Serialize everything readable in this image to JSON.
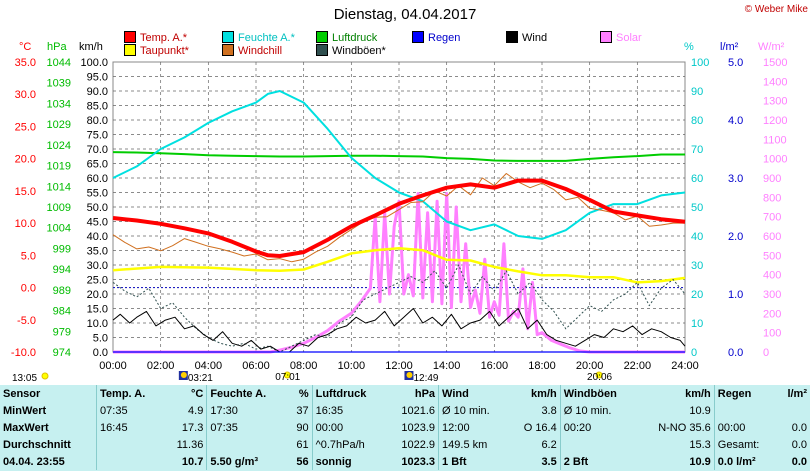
{
  "title": "Dienstag, 04.04.2017",
  "copyright": "© Weber Mike",
  "legend": [
    {
      "label": "Temp. A.*",
      "color": "#ff0000"
    },
    {
      "label": "Taupunkt*",
      "color": "#ffff00"
    },
    {
      "label": "Feuchte A.*",
      "color": "#00e0e0"
    },
    {
      "label": "Windchill",
      "color": "#d07020"
    },
    {
      "label": "Luftdruck",
      "color": "#00cc00"
    },
    {
      "label": "Windböen*",
      "color": "#305050"
    },
    {
      "label": "Regen",
      "color": "#0000ff"
    },
    {
      "label": "Wind",
      "color": "#000000"
    },
    {
      "label": "Solar",
      "color": "#ff80ff"
    }
  ],
  "axis_units": {
    "temp": "°C",
    "pressure": "hPa",
    "wind": "km/h",
    "humidity": "%",
    "rain": "l/m²",
    "solar": "W/m²"
  },
  "chart_data": {
    "type": "line",
    "x_label_times": [
      "00:00",
      "02:00",
      "04:00",
      "06:00",
      "08:00",
      "10:00",
      "12:00",
      "14:00",
      "16:00",
      "18:00",
      "20:00",
      "22:00",
      "24:00"
    ],
    "axes": {
      "temp_c": {
        "range": [
          -10,
          35
        ],
        "ticks": [
          "35.0",
          "30.0",
          "25.0",
          "20.0",
          "15.0",
          "10.0",
          "5.0",
          "0.0",
          "-5.0",
          "-10.0"
        ]
      },
      "pressure_hpa": {
        "range": [
          974,
          1046.4
        ],
        "ticks": [
          "1044",
          "1039",
          "1034",
          "1029",
          "1024",
          "1019",
          "1014",
          "1009",
          "1004",
          "999",
          "994",
          "989",
          "984",
          "979",
          "974"
        ]
      },
      "wind_kmh": {
        "range": [
          0,
          100
        ],
        "ticks": [
          "100.0",
          "95.0",
          "90.0",
          "85.0",
          "80.0",
          "75.0",
          "70.0",
          "65.0",
          "60.0",
          "55.0",
          "50.0",
          "45.0",
          "40.0",
          "35.0",
          "30.0",
          "25.0",
          "20.0",
          "15.0",
          "10.0",
          "5.0",
          "0.0"
        ]
      },
      "humidity_pct": {
        "range": [
          0,
          100
        ],
        "ticks": [
          "100",
          "90",
          "80",
          "70",
          "60",
          "50",
          "40",
          "30",
          "20",
          "10",
          "0"
        ]
      },
      "rain_lm2": {
        "range": [
          0,
          5
        ],
        "ticks": [
          "5.0",
          "4.0",
          "3.0",
          "2.0",
          "1.0",
          "0.0"
        ]
      },
      "solar_wm2": {
        "range": [
          0,
          1500
        ],
        "ticks": [
          "1500",
          "1400",
          "1300",
          "1200",
          "1100",
          "1000",
          "900",
          "800",
          "700",
          "600",
          "500",
          "400",
          "300",
          "200",
          "100",
          "0"
        ]
      }
    },
    "series": [
      {
        "name": "Temp. A.*",
        "axis": "temp_c",
        "color": "#ff0000",
        "x": [
          0,
          1,
          2,
          3,
          4,
          5,
          6,
          6.5,
          7,
          8,
          9,
          10,
          11,
          12,
          13,
          14,
          15,
          16,
          17,
          18,
          19,
          20,
          21,
          22,
          23,
          24
        ],
        "y": [
          10.8,
          10.4,
          9.9,
          9.2,
          8.4,
          7.1,
          5.6,
          5.0,
          4.9,
          5.5,
          7.4,
          9.5,
          11.2,
          13.0,
          14.3,
          15.5,
          16.0,
          15.5,
          16.6,
          16.6,
          15.3,
          13.6,
          11.8,
          11.2,
          10.6,
          10.2
        ]
      },
      {
        "name": "Taupunkt*",
        "axis": "temp_c",
        "color": "#ffff00",
        "x": [
          0,
          2,
          4,
          6,
          7,
          8,
          9,
          10,
          11,
          12,
          13,
          14,
          15,
          16,
          17,
          18,
          19,
          20,
          21,
          22,
          23,
          24
        ],
        "y": [
          2.7,
          3.2,
          3.1,
          2.7,
          2.6,
          2.8,
          4.0,
          5.3,
          5.8,
          6.1,
          5.8,
          4.3,
          4.2,
          3.2,
          2.5,
          1.9,
          1.9,
          1.6,
          1.6,
          0.8,
          1.0,
          1.5
        ]
      },
      {
        "name": "Feuchte A.*",
        "axis": "humidity_pct",
        "color": "#00e0e0",
        "x": [
          0,
          1,
          2,
          3,
          4,
          5,
          6,
          6.5,
          7,
          8,
          9,
          10,
          11,
          12,
          13,
          14,
          15,
          16,
          17,
          18,
          19,
          20,
          21,
          22,
          23,
          24
        ],
        "y": [
          60,
          64,
          70,
          74,
          79,
          83,
          86,
          89,
          90,
          86,
          77,
          67,
          60,
          55,
          52,
          45,
          42,
          44,
          40,
          39,
          42,
          48,
          51,
          51,
          54,
          55
        ]
      },
      {
        "name": "Windchill",
        "axis": "temp_c",
        "color": "#d07020",
        "x": [
          0,
          0.5,
          1,
          1.5,
          2,
          2.5,
          3,
          3.5,
          4,
          4.5,
          5,
          5.5,
          6,
          6.5,
          7,
          7.5,
          8,
          8.5,
          9,
          9.5,
          10,
          10.5,
          11,
          11.5,
          12,
          12.5,
          13,
          13.5,
          14,
          14.5,
          15,
          15.5,
          16,
          16.5,
          17,
          17.5,
          18,
          18.5,
          19,
          19.5,
          20,
          20.5,
          21,
          21.5,
          22,
          22.5,
          23,
          23.5,
          24
        ],
        "y": [
          8.2,
          7.0,
          6.0,
          6.3,
          5.7,
          6.5,
          7.6,
          7.0,
          6.4,
          6.0,
          5.5,
          4.9,
          5.2,
          4.3,
          4.5,
          4.0,
          4.4,
          5.5,
          6.4,
          7.8,
          9.0,
          10.2,
          10.9,
          11.0,
          12.1,
          13.2,
          13.3,
          15.0,
          14.2,
          15.8,
          14.4,
          17.0,
          15.8,
          17.7,
          16.4,
          15.5,
          16.2,
          15.2,
          13.6,
          14.0,
          12.3,
          12.0,
          11.6,
          10.5,
          11.1,
          9.5,
          9.7,
          10.0,
          10.0
        ]
      },
      {
        "name": "Luftdruck",
        "axis": "pressure_hpa",
        "color": "#00cc00",
        "x": [
          0,
          1,
          2,
          3,
          4,
          5,
          6,
          7,
          8,
          9,
          10,
          11,
          12,
          13,
          14,
          15,
          16,
          17,
          18,
          19,
          20,
          21,
          22,
          23,
          24
        ],
        "y": [
          1023.9,
          1023.8,
          1023.6,
          1023.4,
          1023.1,
          1023.0,
          1022.9,
          1022.8,
          1022.8,
          1022.9,
          1023.0,
          1023.0,
          1022.9,
          1022.8,
          1022.4,
          1022.2,
          1021.8,
          1021.7,
          1021.7,
          1021.7,
          1022.2,
          1022.6,
          1022.9,
          1023.3,
          1023.3
        ]
      },
      {
        "name": "Windböen*",
        "axis": "wind_kmh",
        "color": "#305050",
        "x": [
          0,
          0.5,
          1,
          1.5,
          2,
          2.5,
          3,
          3.5,
          4,
          4.5,
          5,
          5.5,
          6,
          6.5,
          7,
          7.5,
          8,
          8.5,
          9,
          9.5,
          10,
          10.5,
          11,
          11.5,
          12,
          12.5,
          13,
          13.5,
          14,
          14.5,
          15,
          15.5,
          16,
          16.5,
          17,
          17.5,
          18,
          18.5,
          19,
          19.5,
          20,
          20.5,
          21,
          21.5,
          22,
          22.5,
          23,
          23.5,
          24
        ],
        "y": [
          24,
          21,
          19,
          22,
          15,
          17,
          12,
          8,
          5,
          3,
          2,
          3,
          1,
          2,
          0,
          2,
          4,
          6,
          5,
          10,
          12,
          18,
          20,
          22,
          24,
          26,
          24,
          28,
          22,
          30,
          20,
          26,
          21,
          28,
          20,
          24,
          18,
          14,
          8,
          12,
          16,
          14,
          18,
          20,
          24,
          16,
          22,
          25,
          20
        ]
      },
      {
        "name": "Wind",
        "axis": "wind_kmh",
        "color": "#000000",
        "x": [
          0,
          0.3,
          0.7,
          1,
          1.4,
          1.8,
          2.2,
          2.6,
          3,
          3.4,
          3.8,
          4.2,
          4.6,
          5,
          5.4,
          5.8,
          6.2,
          6.6,
          7,
          7.4,
          7.8,
          8.2,
          8.6,
          9,
          9.4,
          9.8,
          10.2,
          10.6,
          11,
          11.4,
          11.8,
          12.2,
          12.6,
          13,
          13.4,
          13.8,
          14.2,
          14.6,
          15,
          15.4,
          15.8,
          16.2,
          16.6,
          17,
          17.4,
          17.8,
          18.2,
          18.6,
          19,
          19.4,
          19.8,
          20.2,
          20.6,
          21,
          21.4,
          21.8,
          22.2,
          22.6,
          23,
          23.4,
          23.8,
          24
        ],
        "y": [
          11,
          13,
          10,
          12,
          14,
          9,
          11,
          12,
          8,
          9,
          6,
          4,
          7,
          3,
          2,
          4,
          1,
          2,
          0,
          0,
          3,
          2,
          5,
          6,
          8,
          9,
          12,
          10,
          11,
          14,
          9,
          12,
          15,
          10,
          12,
          9,
          13,
          8,
          10,
          11,
          14,
          9,
          12,
          15,
          8,
          11,
          6,
          4,
          3,
          2,
          4,
          6,
          5,
          8,
          7,
          9,
          6,
          8,
          7,
          5,
          4,
          2
        ]
      },
      {
        "name": "Solar",
        "axis": "solar_wm2",
        "color": "#ff80ff",
        "x": [
          0,
          6.6,
          7,
          7.5,
          8,
          8.5,
          9,
          9.5,
          10,
          10.4,
          10.8,
          11,
          11.2,
          11.4,
          11.6,
          11.8,
          12,
          12.2,
          12.4,
          12.6,
          12.8,
          13,
          13.2,
          13.4,
          13.6,
          13.8,
          14,
          14.2,
          14.4,
          14.6,
          14.8,
          15,
          15.2,
          15.4,
          15.6,
          15.8,
          16,
          16.2,
          16.4,
          16.6,
          16.8,
          17,
          17.2,
          17.4,
          17.6,
          17.8,
          18,
          18.4,
          18.8,
          19.2,
          19.6,
          20,
          24
        ],
        "y": [
          0,
          0,
          10,
          25,
          45,
          75,
          110,
          160,
          200,
          260,
          330,
          700,
          260,
          720,
          300,
          650,
          780,
          300,
          400,
          290,
          820,
          280,
          720,
          260,
          780,
          250,
          820,
          230,
          750,
          260,
          560,
          230,
          320,
          200,
          480,
          180,
          260,
          190,
          560,
          160,
          210,
          180,
          430,
          120,
          360,
          90,
          100,
          60,
          40,
          20,
          5,
          0,
          0
        ]
      },
      {
        "name": "Regen",
        "axis": "rain_lm2",
        "color": "#0000ff",
        "x": [
          0,
          24
        ],
        "y": [
          0,
          0
        ]
      }
    ],
    "markers": [
      {
        "time": "13:05",
        "kind": "sun"
      },
      {
        "time": "03:21",
        "kind": "moon"
      },
      {
        "time": "07:01",
        "kind": "sun"
      },
      {
        "time": "12:49",
        "kind": "moon"
      },
      {
        "time": "20:06",
        "kind": "sun"
      }
    ]
  },
  "stats": {
    "headers": [
      "Sensor",
      "Temp. A.",
      "°C",
      "Feuchte A.",
      "%",
      "Luftdruck",
      "hPa",
      "Wind",
      "km/h",
      "Windböen",
      "km/h",
      "Regen",
      "l/m²"
    ],
    "rows": [
      [
        "MinWert",
        "07:35",
        "4.9",
        "17:30",
        "37",
        "16:35",
        "1021.6",
        "Ø 10 min.",
        "3.8",
        "Ø 10 min.",
        "10.9",
        "",
        ""
      ],
      [
        "MaxWert",
        "16:45",
        "17.3",
        "07:35",
        "90",
        "00:00",
        "1023.9",
        "12:00",
        "O 16.4",
        "00:20",
        "N-NO 35.6",
        "00:00",
        "0.0"
      ],
      [
        "Durchschnitt",
        "",
        "11.36",
        "",
        "61",
        "^0.7hPa/h",
        "1022.9",
        "149.5 km",
        "6.2",
        "",
        "15.3",
        "Gesamt:",
        "0.0"
      ],
      [
        "04.04. 23:55",
        "",
        "10.7",
        "5.50 g/m³",
        "56",
        "sonnig",
        "1023.3",
        "1 Bft",
        "3.5",
        "2 Bft",
        "10.9",
        "0.0 l/m²",
        "0.0"
      ]
    ]
  }
}
